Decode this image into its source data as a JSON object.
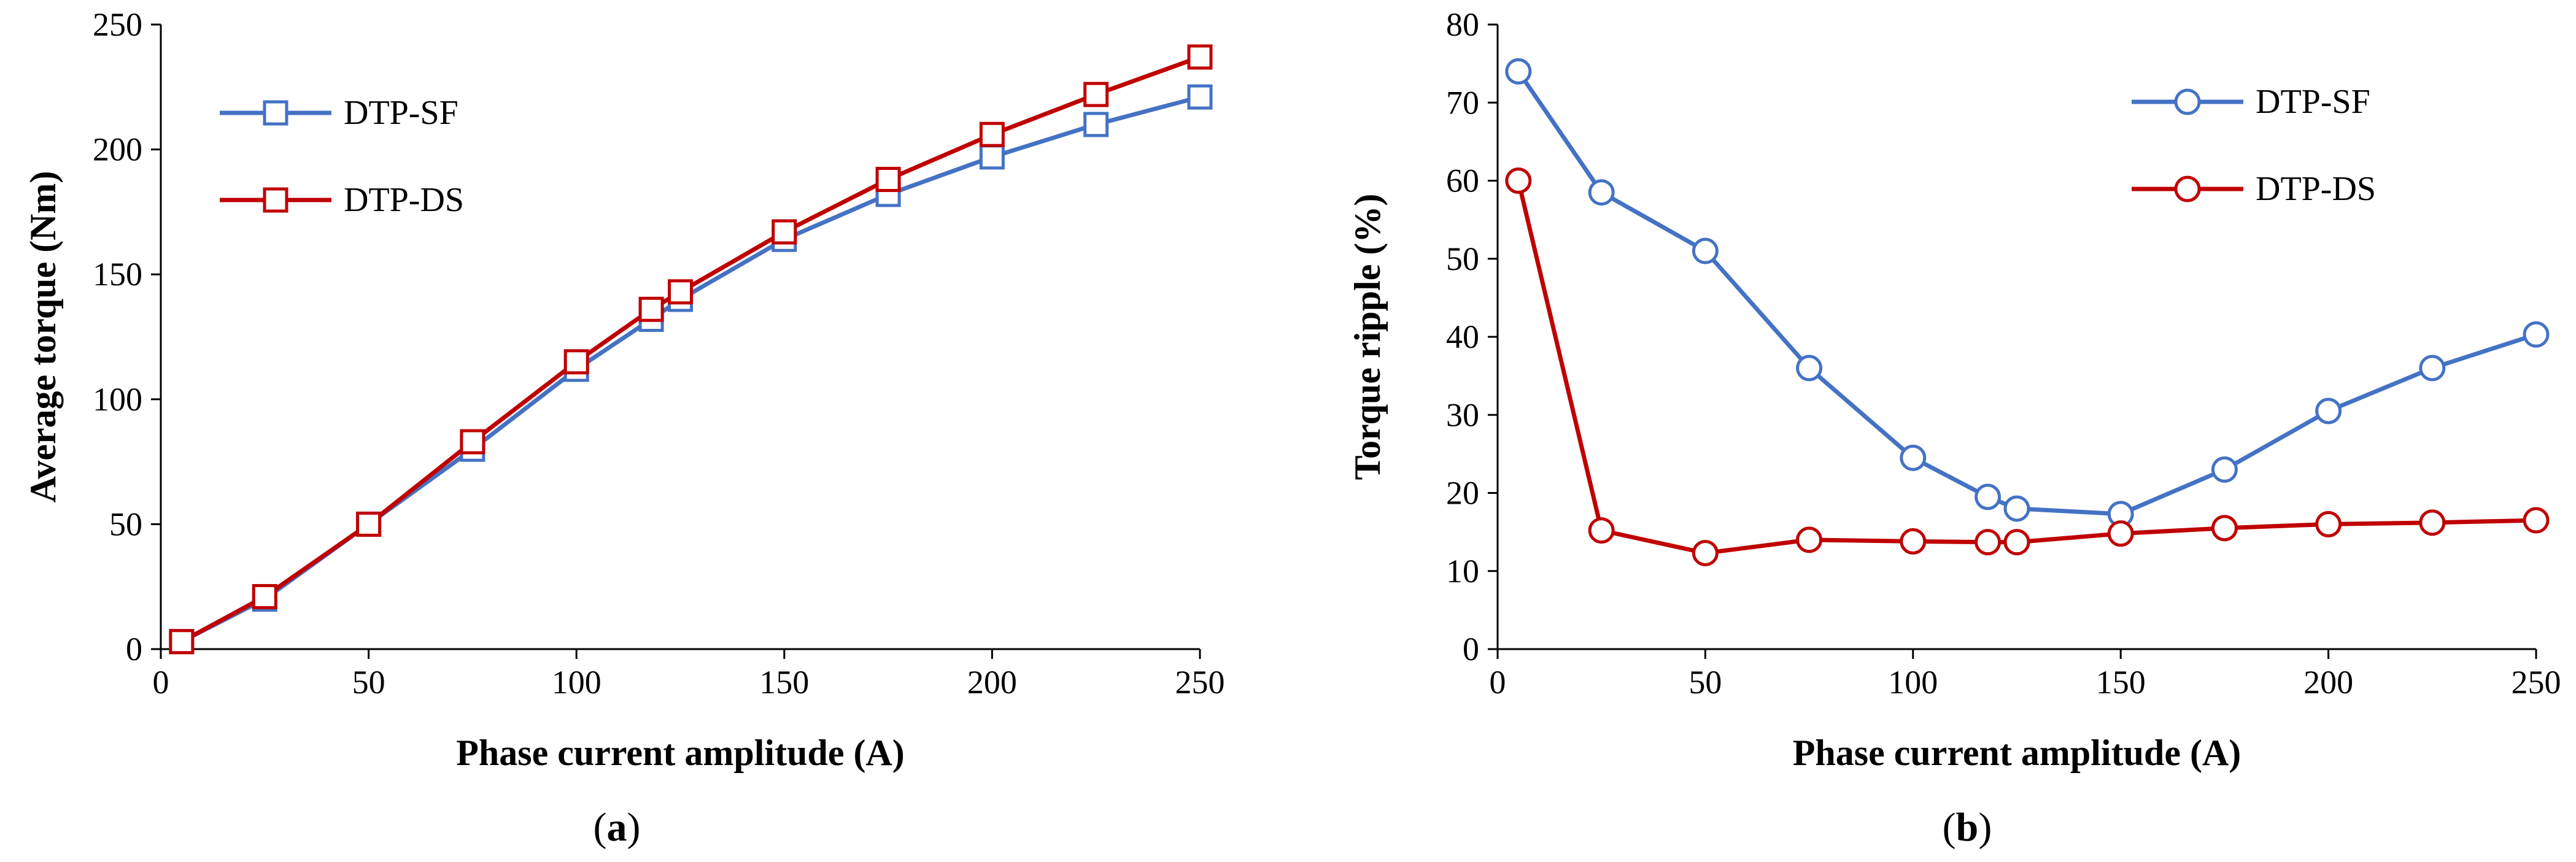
{
  "colors": {
    "blue": "#4472C4",
    "red": "#C00000",
    "axis": "#000000"
  },
  "chart_data": [
    {
      "type": "line",
      "panel_label": "a",
      "title": "",
      "xlabel": "Phase current amplitude (A)",
      "ylabel": "Average torque (Nm)",
      "xlim": [
        0,
        250
      ],
      "ylim": [
        0,
        250
      ],
      "xticks": [
        0,
        50,
        100,
        150,
        200,
        250
      ],
      "yticks": [
        0,
        50,
        100,
        150,
        200,
        250
      ],
      "grid": false,
      "marker": "square",
      "legend_position": "top-left",
      "series": [
        {
          "name": "DTP-SF",
          "color": "#4472C4",
          "points": [
            [
              5,
              3
            ],
            [
              25,
              20
            ],
            [
              50,
              50
            ],
            [
              75,
              80
            ],
            [
              100,
              112
            ],
            [
              118,
              132
            ],
            [
              125,
              140
            ],
            [
              150,
              164
            ],
            [
              175,
              182
            ],
            [
              200,
              197
            ],
            [
              225,
              210
            ],
            [
              250,
              221
            ]
          ]
        },
        {
          "name": "DTP-DS",
          "color": "#C00000",
          "points": [
            [
              5,
              3
            ],
            [
              25,
              21
            ],
            [
              50,
              50
            ],
            [
              75,
              83
            ],
            [
              100,
              115
            ],
            [
              118,
              136
            ],
            [
              125,
              143
            ],
            [
              150,
              167
            ],
            [
              175,
              188
            ],
            [
              200,
              206
            ],
            [
              225,
              222
            ],
            [
              250,
              237
            ]
          ]
        }
      ]
    },
    {
      "type": "line",
      "panel_label": "b",
      "title": "",
      "xlabel": "Phase current amplitude (A)",
      "ylabel": "Torque ripple (%)",
      "xlim": [
        0,
        250
      ],
      "ylim": [
        0,
        80
      ],
      "xticks": [
        0,
        50,
        100,
        150,
        200,
        250
      ],
      "yticks": [
        0,
        10,
        20,
        30,
        40,
        50,
        60,
        70,
        80
      ],
      "grid": false,
      "marker": "circle",
      "legend_position": "top-right",
      "series": [
        {
          "name": "DTP-SF",
          "color": "#4472C4",
          "points": [
            [
              5,
              74
            ],
            [
              25,
              58.5
            ],
            [
              50,
              51
            ],
            [
              75,
              36
            ],
            [
              100,
              24.5
            ],
            [
              118,
              19.5
            ],
            [
              125,
              18
            ],
            [
              150,
              17.3
            ],
            [
              175,
              23
            ],
            [
              200,
              30.5
            ],
            [
              225,
              36
            ],
            [
              250,
              40.3
            ]
          ]
        },
        {
          "name": "DTP-DS",
          "color": "#C00000",
          "points": [
            [
              5,
              60
            ],
            [
              25,
              15.2
            ],
            [
              50,
              12.3
            ],
            [
              75,
              14
            ],
            [
              100,
              13.8
            ],
            [
              118,
              13.7
            ],
            [
              125,
              13.7
            ],
            [
              150,
              14.8
            ],
            [
              175,
              15.5
            ],
            [
              200,
              16
            ],
            [
              225,
              16.2
            ],
            [
              250,
              16.5
            ]
          ]
        }
      ]
    }
  ]
}
